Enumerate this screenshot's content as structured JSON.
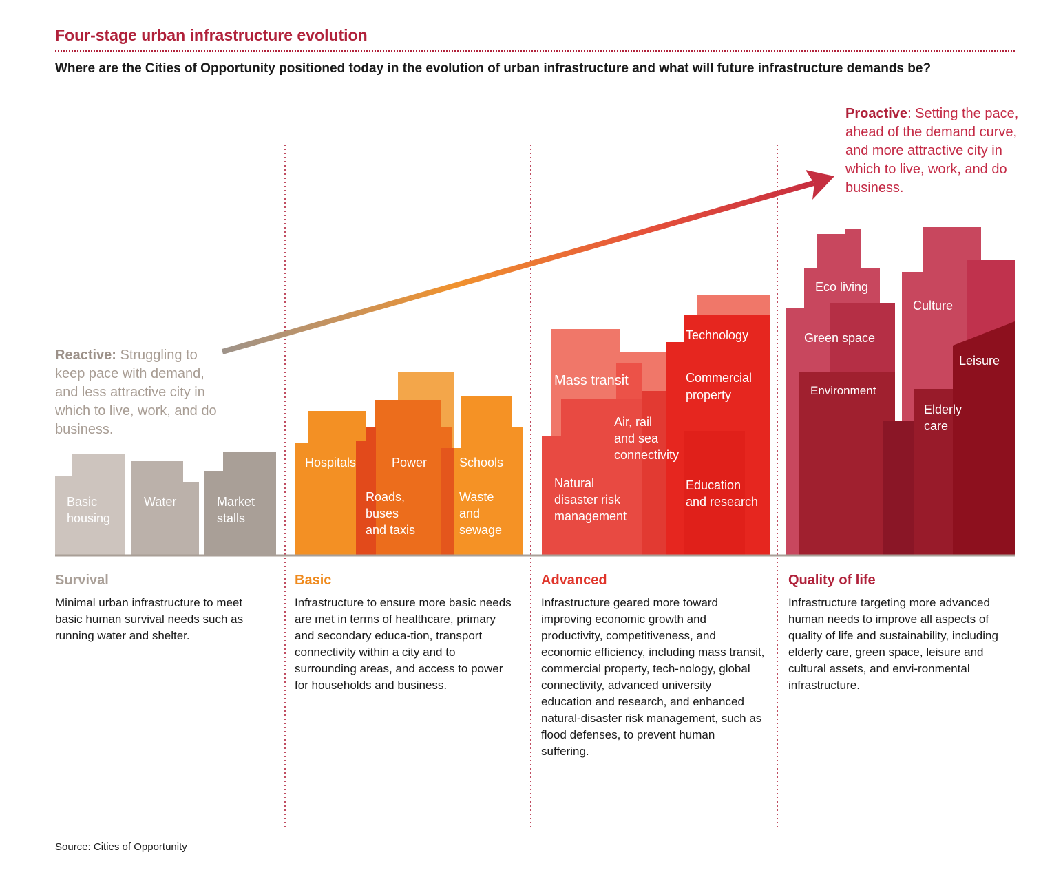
{
  "title": "Four-stage urban infrastructure evolution",
  "subtitle": "Where are the Cities of Opportunity positioned today in the evolution of urban infrastructure and what will future infrastructure demands be?",
  "reactive": {
    "label": "Reactive:",
    "text": " Struggling to keep pace with demand, and less attractive city in which to live, work, and do business."
  },
  "proactive": {
    "label": "Proactive",
    "text": ": Setting the pace, ahead of the demand curve, and more attractive city in which to live, work, and do business."
  },
  "stages": [
    {
      "name": "Survival",
      "color": "#a99f97",
      "description": "Minimal urban infrastructure to meet basic human survival needs such as running water and shelter.",
      "buildings": [
        "Basic housing",
        "Water",
        "Market stalls"
      ]
    },
    {
      "name": "Basic",
      "color": "#ef8a1e",
      "description": "Infrastructure to ensure more basic needs are met in terms of healthcare, primary and secondary educa-tion, transport connectivity within a city and to surrounding areas, and access to power for households and business.",
      "buildings": [
        "Hospitals",
        "Power",
        "Schools",
        "Roads, buses and taxis",
        "Waste and sewage"
      ]
    },
    {
      "name": "Advanced",
      "color": "#e0352b",
      "description": "Infrastructure geared more toward improving economic growth and productivity, competitiveness, and economic efficiency, including mass transit, commercial property, tech-nology, global connectivity, advanced university education and research, and enhanced natural-disaster risk management, such as flood defenses, to prevent human suffering.",
      "buildings": [
        "Mass transit",
        "Technology",
        "Commercial property",
        "Air, rail and sea connectivity",
        "Natural disaster risk management",
        "Education and research"
      ]
    },
    {
      "name": "Quality of life",
      "color": "#b0213a",
      "description": "Infrastructure targeting more advanced human needs to improve all aspects of quality of life and sustainability, including elderly care, green space, leisure and cultural assets, and envi-ronmental infrastructure.",
      "buildings": [
        "Eco living",
        "Culture",
        "Green space",
        "Leisure",
        "Environment",
        "Elderly care"
      ]
    }
  ],
  "source": "Source: Cities of Opportunity"
}
